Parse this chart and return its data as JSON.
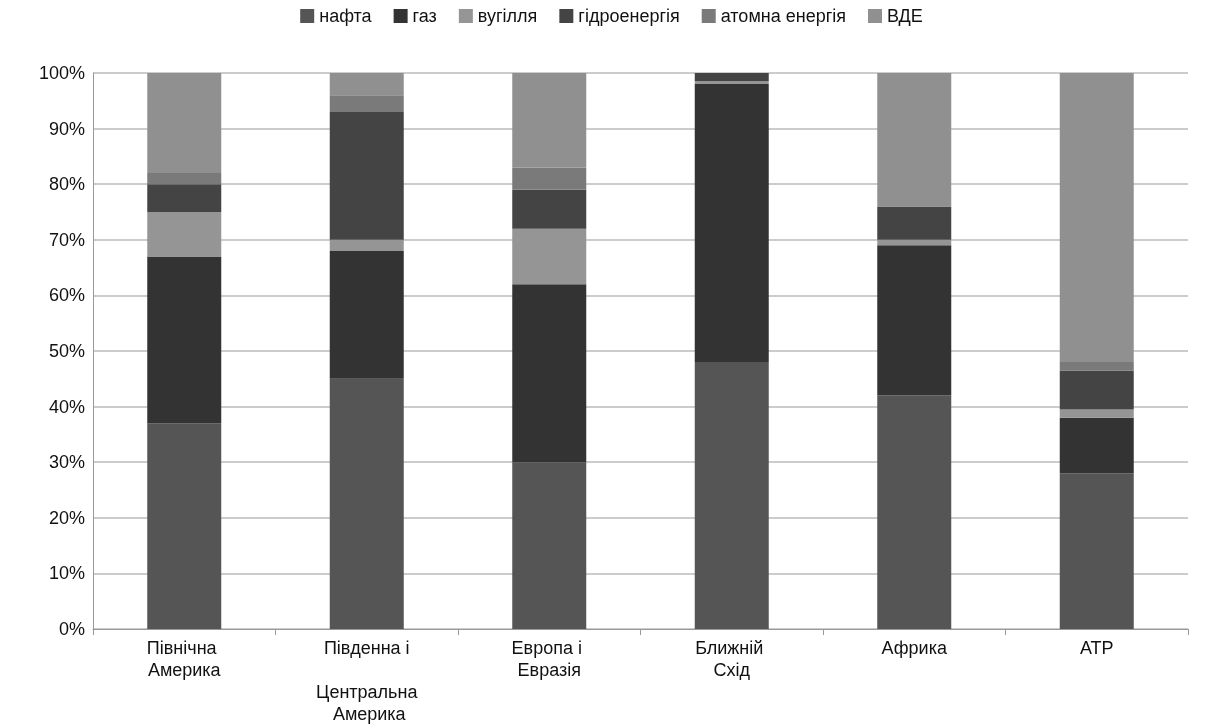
{
  "chart_data": {
    "type": "bar",
    "stacked": true,
    "categories": [
      "Північна Америка",
      "Південна і Центральна Америка",
      "Европа і Евразія",
      "Ближній Схід",
      "Африка",
      "АТР"
    ],
    "series": [
      {
        "name": "нафта",
        "color": "#555555",
        "values": [
          37,
          45,
          30,
          48,
          42,
          28
        ]
      },
      {
        "name": "газ",
        "color": "#333333",
        "values": [
          30,
          23,
          32,
          50,
          27,
          10
        ]
      },
      {
        "name": "вугілля",
        "color": "#959595",
        "values": [
          8,
          2,
          10,
          0.5,
          1,
          1.5
        ]
      },
      {
        "name": "гідроенергія",
        "color": "#444444",
        "values": [
          5,
          23,
          7,
          1.5,
          6,
          7
        ]
      },
      {
        "name": "атомна енергія",
        "color": "#7a7a7a",
        "values": [
          2,
          3,
          4,
          0,
          0,
          1.5
        ]
      },
      {
        "name": "ВДЕ",
        "color": "#909090",
        "values": [
          18,
          4,
          17,
          0,
          24,
          52
        ]
      }
    ],
    "ylim": [
      0,
      100
    ],
    "yticks": [
      {
        "value": 0,
        "label": "0%"
      },
      {
        "value": 10,
        "label": "10%"
      },
      {
        "value": 20,
        "label": "20%"
      },
      {
        "value": 30,
        "label": "30%"
      },
      {
        "value": 40,
        "label": "40%"
      },
      {
        "value": 50,
        "label": "50%"
      },
      {
        "value": 60,
        "label": "60%"
      },
      {
        "value": 70,
        "label": "70%"
      },
      {
        "value": 80,
        "label": "80%"
      },
      {
        "value": 90,
        "label": "90%"
      },
      {
        "value": 100,
        "label": "100%"
      }
    ],
    "grid": "y",
    "legend": "top"
  }
}
